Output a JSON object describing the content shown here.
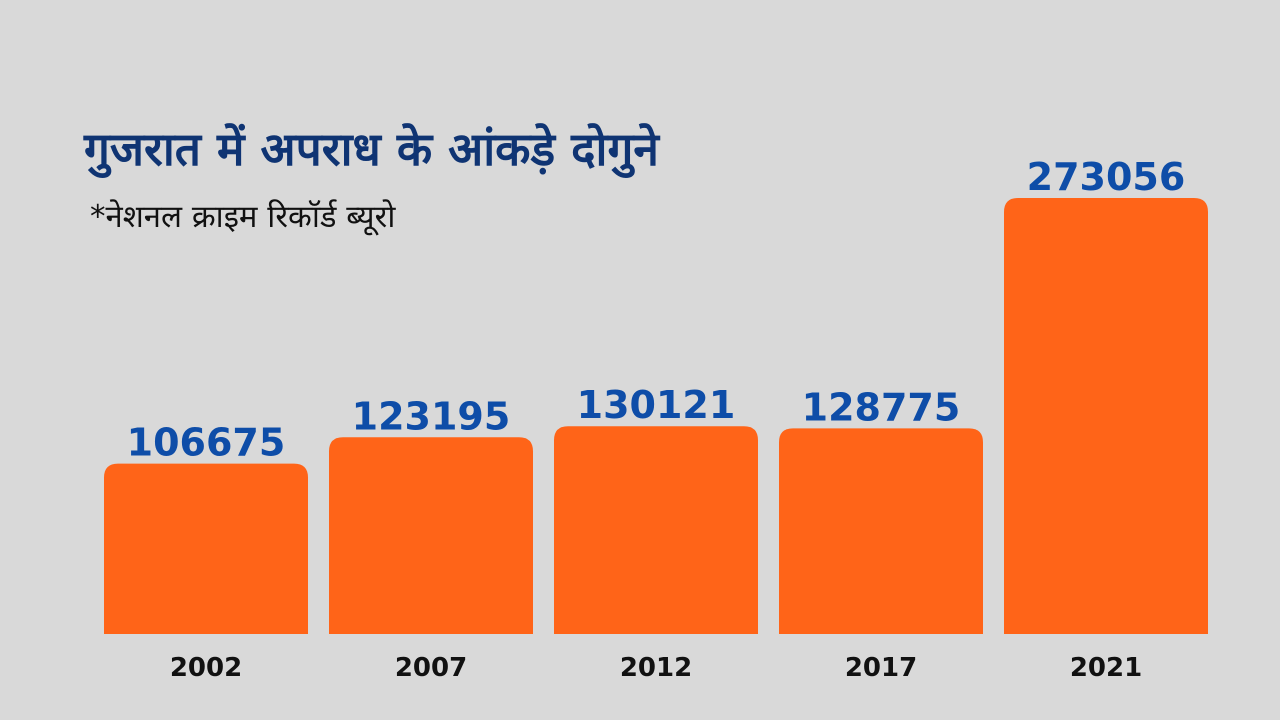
{
  "title": "गुजरात में अपराध के आंकड़े दोगुने",
  "subtitle": "*नेशनल क्राइम रिकॉर्ड ब्यूरो",
  "colors": {
    "background": "#d9d9d9",
    "bar": "#ff6418",
    "value_label": "#0e4da8",
    "title": "#0f3473"
  },
  "chart_data": {
    "type": "bar",
    "title": "गुजरात में अपराध के आंकड़े दोगुने",
    "subtitle": "*नेशनल क्राइम रिकॉर्ड ब्यूरो",
    "xlabel": "",
    "ylabel": "",
    "categories": [
      "2002",
      "2007",
      "2012",
      "2017",
      "2021"
    ],
    "values": [
      106675,
      123195,
      130121,
      128775,
      273056
    ],
    "data_labels": [
      "106675",
      "123195",
      "130121",
      "128775",
      "273056"
    ],
    "ylim": [
      0,
      273056
    ],
    "grid": false,
    "legend": "none"
  }
}
